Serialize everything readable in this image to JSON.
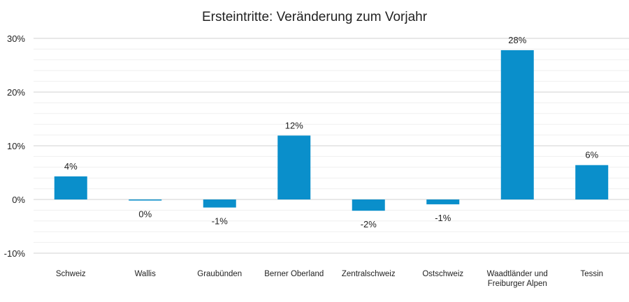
{
  "chart_data": {
    "type": "bar",
    "title": "Ersteintritte: Veränderung zum Vorjahr",
    "xlabel": "",
    "ylabel": "",
    "ylim": [
      -10,
      30
    ],
    "yticks": [
      -10,
      0,
      10,
      20,
      30
    ],
    "ytick_labels": [
      "-10%",
      "0%",
      "10%",
      "20%",
      "30%"
    ],
    "minor_grid_step": 2,
    "grid": true,
    "categories": [
      "Schweiz",
      "Wallis",
      "Graubünden",
      "Berner Oberland",
      "Zentralschweiz",
      "Ostschweiz",
      "Waadtländer und\nFreiburger Alpen",
      "Tessin"
    ],
    "values": [
      4.3,
      -0.2,
      -1.5,
      11.9,
      -2.1,
      -0.9,
      27.8,
      6.4
    ],
    "data_labels": [
      "4%",
      "0%",
      "-1%",
      "12%",
      "-2%",
      "-1%",
      "28%",
      "6%"
    ],
    "color": "#0A8FCB"
  }
}
